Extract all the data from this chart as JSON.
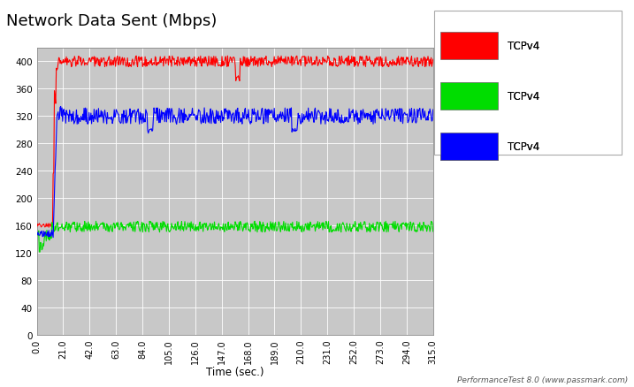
{
  "title": "Network Data Sent (Mbps)",
  "xlabel": "Time (sec.)",
  "xlim": [
    0.0,
    315.0
  ],
  "ylim": [
    0,
    420
  ],
  "yticks": [
    0,
    40,
    80,
    120,
    160,
    200,
    240,
    280,
    320,
    360,
    400
  ],
  "xtick_labels": [
    "0.0",
    "21.0",
    "42.0",
    "63.0",
    "84.0",
    "105.0",
    "126.0",
    "147.0",
    "168.0",
    "189.0",
    "210.0",
    "231.0",
    "252.0",
    "273.0",
    "294.0",
    "315.0"
  ],
  "xtick_vals": [
    0.0,
    21.0,
    42.0,
    63.0,
    84.0,
    105.0,
    126.0,
    147.0,
    168.0,
    189.0,
    210.0,
    231.0,
    252.0,
    273.0,
    294.0,
    315.0
  ],
  "legend_labels": [
    "TCPv4",
    "TCPv4",
    "TCPv4"
  ],
  "legend_colors": [
    "#ff0000",
    "#00dd00",
    "#0000ff"
  ],
  "bg_color": "#c8c8c8",
  "outer_bg_color": "#ffffff",
  "grid_color": "#ffffff",
  "watermark": "PerformanceTest 8.0 (www.passmark.com)",
  "red_base": 400,
  "green_base": 158,
  "blue_base": 320
}
